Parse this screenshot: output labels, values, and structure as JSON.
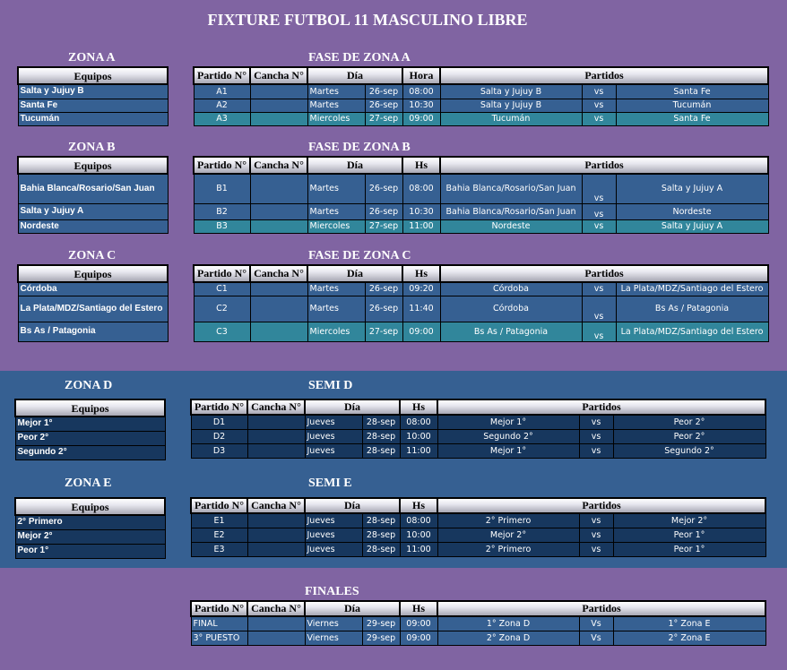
{
  "title": "FIXTURE FUTBOL 11 MASCULINO LIBRE",
  "colors": {
    "background": "#8064a2",
    "band": "#366092",
    "cell_blue": "#366092",
    "cell_teal": "#31869b",
    "cell_navy": "#17375e"
  },
  "team_header": "Equipos",
  "vs": "vs",
  "sections": {
    "a": {
      "zone": "ZONA A",
      "phase": "FASE DE ZONA A",
      "headers": {
        "partido": "Partido N°",
        "cancha": "Cancha N°",
        "dia": "Día",
        "hora": "Hora",
        "partidos": "Partidos"
      },
      "teams": [
        "Salta y Jujuy B",
        "Santa Fe",
        "Tucumán"
      ],
      "matches": [
        {
          "id": "A1",
          "day": "Martes",
          "date": "26-sep",
          "time": "08:00",
          "home": "Salta y Jujuy B",
          "away": "Santa Fe"
        },
        {
          "id": "A2",
          "day": "Martes",
          "date": "26-sep",
          "time": "10:30",
          "home": "Salta y Jujuy B",
          "away": "Tucumán"
        },
        {
          "id": "A3",
          "day": "Miercoles",
          "date": "27-sep",
          "time": "09:00",
          "home": "Tucumán",
          "away": "Santa Fe"
        }
      ]
    },
    "b": {
      "zone": "ZONA B",
      "phase": "FASE DE ZONA B",
      "headers": {
        "partido": "Partido N°",
        "cancha": "Cancha N°",
        "dia": "Día",
        "hora": "Hs",
        "partidos": "Partidos"
      },
      "teams": [
        "Bahia Blanca/Rosario/San Juan",
        "Salta y Jujuy A",
        "Nordeste"
      ],
      "matches": [
        {
          "id": "B1",
          "day": "Martes",
          "date": "26-sep",
          "time": "08:00",
          "home": "Bahia Blanca/Rosario/San Juan",
          "away": "Salta y Jujuy A"
        },
        {
          "id": "B2",
          "day": "Martes",
          "date": "26-sep",
          "time": "10:30",
          "home": "Bahia Blanca/Rosario/San Juan",
          "away": "Nordeste"
        },
        {
          "id": "B3",
          "day": "Miercoles",
          "date": "27-sep",
          "time": "11:00",
          "home": "Nordeste",
          "away": "Salta y Jujuy A"
        }
      ]
    },
    "c": {
      "zone": "ZONA C",
      "phase": "FASE DE ZONA C",
      "headers": {
        "partido": "Partido N°",
        "cancha": "Cancha N°",
        "dia": "Día",
        "hora": "Hs",
        "partidos": "Partidos"
      },
      "teams": [
        "Córdoba",
        "La Plata/MDZ/Santiago del Estero",
        "Bs As / Patagonia"
      ],
      "matches": [
        {
          "id": "C1",
          "day": "Martes",
          "date": "26-sep",
          "time": "09:20",
          "home": "Córdoba",
          "away": "La Plata/MDZ/Santiago del Estero"
        },
        {
          "id": "C2",
          "day": "Martes",
          "date": "26-sep",
          "time": "11:40",
          "home": "Córdoba",
          "away": "Bs As / Patagonia"
        },
        {
          "id": "C3",
          "day": "Miercoles",
          "date": "27-sep",
          "time": "09:00",
          "home": "Bs As / Patagonia",
          "away": "La Plata/MDZ/Santiago del Estero"
        }
      ]
    },
    "d": {
      "zone": "ZONA D",
      "phase": "SEMI D",
      "headers": {
        "partido": "Partido N°",
        "cancha": "Cancha N°",
        "dia": "Día",
        "hora": "Hs",
        "partidos": "Partidos"
      },
      "teams": [
        "Mejor 1°",
        "Peor 2°",
        "Segundo 2°"
      ],
      "matches": [
        {
          "id": "D1",
          "day": "Jueves",
          "date": "28-sep",
          "time": "08:00",
          "home": "Mejor 1°",
          "away": "Peor 2°"
        },
        {
          "id": "D2",
          "day": "Jueves",
          "date": "28-sep",
          "time": "10:00",
          "home": "Segundo 2°",
          "away": "Peor 2°"
        },
        {
          "id": "D3",
          "day": "Jueves",
          "date": "28-sep",
          "time": "11:00",
          "home": "Mejor 1°",
          "away": "Segundo 2°"
        }
      ]
    },
    "e": {
      "zone": "ZONA E",
      "phase": "SEMI E",
      "headers": {
        "partido": "Partido N°",
        "cancha": "Cancha N°",
        "dia": "Día",
        "hora": "Hs",
        "partidos": "Partidos"
      },
      "teams": [
        "2° Primero",
        "Mejor 2°",
        "Peor 1°"
      ],
      "matches": [
        {
          "id": "E1",
          "day": "Jueves",
          "date": "28-sep",
          "time": "08:00",
          "home": "2° Primero",
          "away": "Mejor 2°"
        },
        {
          "id": "E2",
          "day": "Jueves",
          "date": "28-sep",
          "time": "10:00",
          "home": "Mejor 2°",
          "away": "Peor 1°"
        },
        {
          "id": "E3",
          "day": "Jueves",
          "date": "28-sep",
          "time": "11:00",
          "home": "2° Primero",
          "away": "Peor 1°"
        }
      ]
    },
    "f": {
      "phase": "FINALES",
      "headers": {
        "partido": "Partido N°",
        "cancha": "Cancha N°",
        "dia": "Día",
        "hora": "Hs",
        "partidos": "Partidos"
      },
      "vs": "Vs",
      "matches": [
        {
          "id": "FINAL",
          "day": "Viernes",
          "date": "29-sep",
          "time": "09:00",
          "home": "1° Zona D",
          "away": "1° Zona E"
        },
        {
          "id": "3° PUESTO",
          "day": "Viernes",
          "date": "29-sep",
          "time": "09:00",
          "home": "2° Zona D",
          "away": "2° Zona E"
        }
      ]
    }
  }
}
